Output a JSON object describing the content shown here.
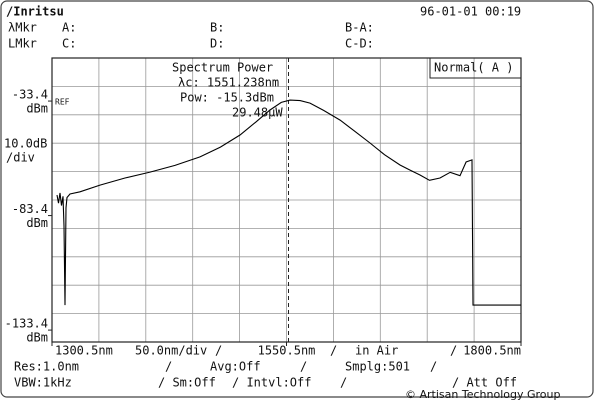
{
  "header": {
    "logo": "/Inritsu",
    "datetime": "96-01-01 00:19",
    "marker_rows": [
      [
        "λMkr",
        "A:",
        "B:",
        "B-A:"
      ],
      [
        "LMkr",
        "C:",
        "D:",
        "C-D:"
      ]
    ]
  },
  "chart_data": {
    "type": "line",
    "title": "Spectrum Power",
    "annotations": [
      "λc: 1551.238nm",
      "Pow: -15.3dBm",
      "29.48μW"
    ],
    "mode": "Normal( A )",
    "ref_label": "REF",
    "y_unit": "dBm",
    "scale_label": [
      "10.0dB",
      "/div"
    ],
    "x_span_label": "50.0nm/div",
    "medium": "in Air",
    "xlim": [
      1300.5,
      1800.5
    ],
    "xticks": [
      {
        "value": 1300.5,
        "label": "1300.5nm"
      },
      {
        "value": 1550.5,
        "label": "1550.5nm"
      },
      {
        "value": 1800.5,
        "label": "1800.5nm"
      }
    ],
    "ylim": [
      -138.6,
      -14.6
    ],
    "yticks": [
      -33.4,
      -83.4,
      -133.4
    ],
    "grid": true,
    "series": [
      {
        "color": "#000000",
        "x": [
          1305.8,
          1307.4,
          1309.0,
          1310.6,
          1312.2,
          1313.3,
          1314.4,
          1315.4,
          1316.5,
          1319.7,
          1330.3,
          1351.7,
          1378.3,
          1405.0,
          1431.6,
          1458.3,
          1480.0,
          1500.9,
          1518.0,
          1532.9,
          1545.0,
          1554.2,
          1565.0,
          1575.6,
          1590.0,
          1607.6,
          1623.0,
          1639.5,
          1655.0,
          1671.5,
          1682.0,
          1692.8,
          1703.0,
          1714.1,
          1725.0,
          1735.5,
          1742.0,
          1748.3,
          1749.3,
          1800.5
        ],
        "values": [
          -74.4,
          -78.0,
          -73.5,
          -79.0,
          -75.0,
          -88.0,
          -122.5,
          -80.0,
          -75.5,
          -74.0,
          -73.0,
          -70.1,
          -67.0,
          -64.4,
          -61.5,
          -57.8,
          -53.5,
          -48.2,
          -42.5,
          -37.3,
          -34.0,
          -33.0,
          -33.2,
          -34.3,
          -37.5,
          -41.7,
          -46.5,
          -51.7,
          -56.8,
          -61.3,
          -63.5,
          -65.7,
          -68.0,
          -67.0,
          -64.5,
          -66.0,
          -60.0,
          -59.1,
          -122.5,
          -122.5
        ]
      }
    ]
  },
  "footer": {
    "rows": [
      [
        "Res:1.0nm",
        "/",
        "Avg:Off",
        "/",
        "Smplg:501",
        "/"
      ],
      [
        "VBW:1kHz",
        "/ Sm:Off",
        "/ Intvl:Off",
        "/",
        "/ Att Off"
      ]
    ],
    "separators": [
      "/",
      "/",
      "/"
    ],
    "copyright": "© Artisan Technology Group"
  }
}
